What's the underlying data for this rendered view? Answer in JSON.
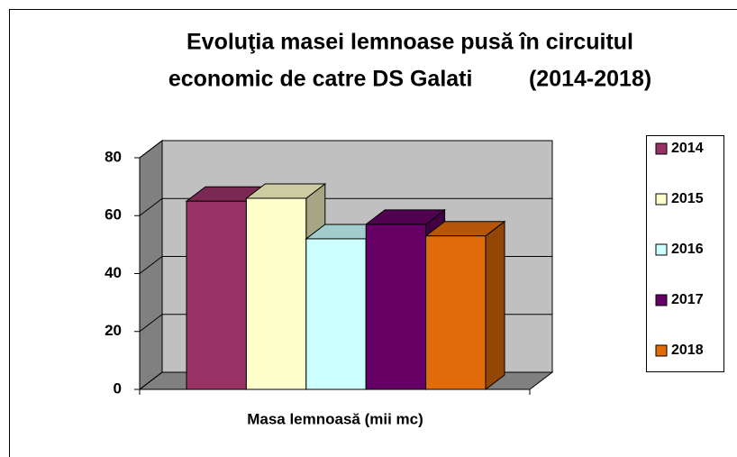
{
  "chart_data": {
    "type": "bar3d",
    "title": [
      "Evoluţia masei lemnoase pusă în circuitul",
      "economic de catre DS Galati         (2014-2018)"
    ],
    "categories": [
      "Masa lemnoasă (mii mc)"
    ],
    "series": [
      {
        "name": "2014",
        "color": "#993366",
        "values": [
          65
        ]
      },
      {
        "name": "2015",
        "color": "#ffffcc",
        "values": [
          66
        ]
      },
      {
        "name": "2016",
        "color": "#ccffff",
        "values": [
          52
        ]
      },
      {
        "name": "2017",
        "color": "#660066",
        "values": [
          57
        ]
      },
      {
        "name": "2018",
        "color": "#e36c0a",
        "values": [
          53
        ]
      }
    ],
    "ylim": [
      0,
      80
    ],
    "yticks": [
      0,
      20,
      40,
      60,
      80
    ],
    "grid": true,
    "legend": "right"
  }
}
